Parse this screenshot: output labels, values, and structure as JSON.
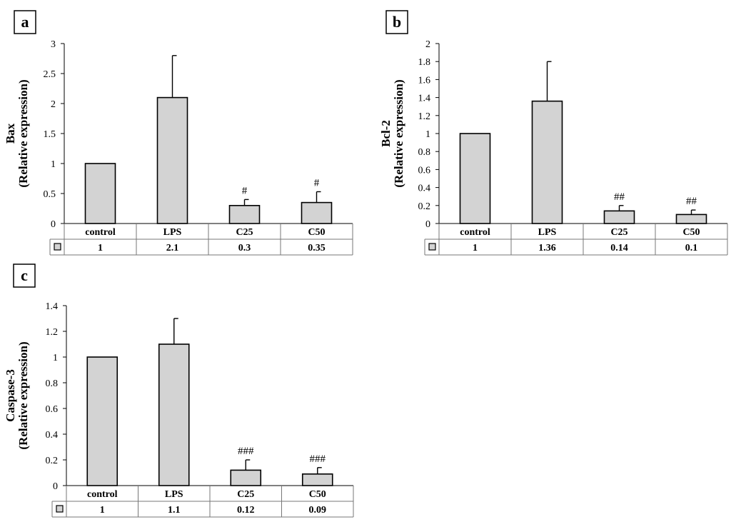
{
  "chart_data": [
    {
      "type": "bar",
      "panel_label": "a",
      "ylabel_line1": "Bax",
      "ylabel_line2": "(Relative expression)",
      "categories": [
        "control",
        "LPS",
        "C25",
        "C50"
      ],
      "values": [
        1,
        2.1,
        0.3,
        0.35
      ],
      "value_labels": [
        "1",
        "2.1",
        "0.3",
        "0.35"
      ],
      "error_upper": [
        0,
        0.7,
        0.1,
        0.18
      ],
      "annotations": [
        "",
        "",
        "#",
        "#"
      ],
      "ylim": [
        0,
        3
      ],
      "yticks": [
        "0",
        "0.5",
        "1",
        "1.5",
        "2",
        "2.5",
        "3"
      ],
      "ytick_values": [
        0,
        0.5,
        1,
        1.5,
        2,
        2.5,
        3
      ],
      "grid": false,
      "bar_color": "#d3d3d3"
    },
    {
      "type": "bar",
      "panel_label": "b",
      "ylabel_line1": "Bcl-2",
      "ylabel_line2": "(Relative expression)",
      "categories": [
        "control",
        "LPS",
        "C25",
        "C50"
      ],
      "values": [
        1,
        1.36,
        0.14,
        0.1
      ],
      "value_labels": [
        "1",
        "1.36",
        "0.14",
        "0.1"
      ],
      "error_upper": [
        0,
        0.44,
        0.06,
        0.05
      ],
      "annotations": [
        "",
        "",
        "##",
        "##"
      ],
      "ylim": [
        0,
        2
      ],
      "yticks": [
        "0",
        "0.2",
        "0.4",
        "0.6",
        "0.8",
        "1",
        "1.2",
        "1.4",
        "1.6",
        "1.8",
        "2"
      ],
      "ytick_values": [
        0,
        0.2,
        0.4,
        0.6,
        0.8,
        1,
        1.2,
        1.4,
        1.6,
        1.8,
        2
      ],
      "grid": false,
      "bar_color": "#d3d3d3"
    },
    {
      "type": "bar",
      "panel_label": "c",
      "ylabel_line1": "Caspase-3",
      "ylabel_line2": "(Relative expression)",
      "categories": [
        "control",
        "LPS",
        "C25",
        "C50"
      ],
      "values": [
        1,
        1.1,
        0.12,
        0.09
      ],
      "value_labels": [
        "1",
        "1.1",
        "0.12",
        "0.09"
      ],
      "error_upper": [
        0,
        0.2,
        0.08,
        0.05
      ],
      "annotations": [
        "",
        "",
        "###",
        "###"
      ],
      "ylim": [
        0,
        1.4
      ],
      "yticks": [
        "0",
        "0.2",
        "0.4",
        "0.6",
        "0.8",
        "1",
        "1.2",
        "1.4"
      ],
      "ytick_values": [
        0,
        0.2,
        0.4,
        0.6,
        0.8,
        1,
        1.2,
        1.4
      ],
      "grid": false,
      "bar_color": "#d3d3d3"
    }
  ]
}
